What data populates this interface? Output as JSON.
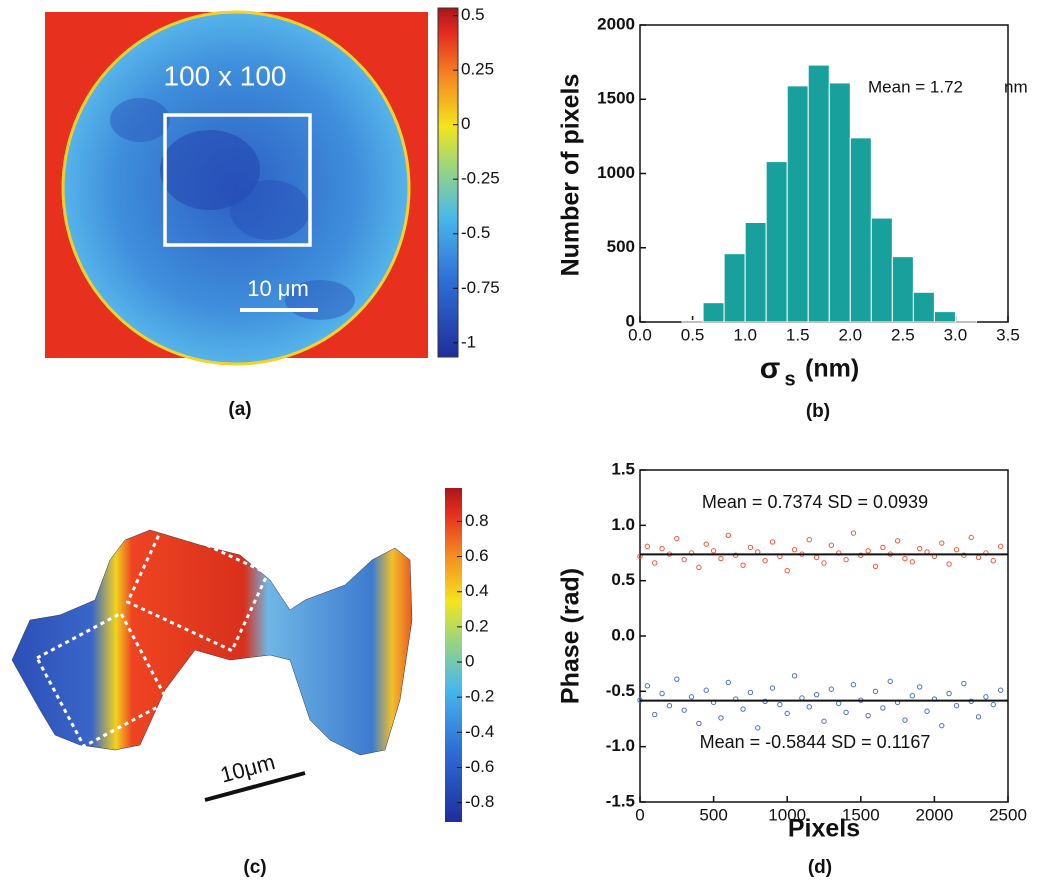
{
  "chart_data": [
    {
      "type": "heatmap",
      "label": "(a)",
      "annotations": [
        "100 x 100",
        "10 μm"
      ],
      "clim": [
        -1.065,
        0.535
      ],
      "cticks": [
        0.5,
        0.25,
        0,
        -0.25,
        -0.5,
        -0.75,
        -1
      ]
    },
    {
      "type": "histogram",
      "label": "(b)",
      "y_label": "Number of pixels",
      "x_label": {
        "symbol": "σ",
        "subscript": "s",
        "unit": "(nm)"
      },
      "annotation": "Mean = 1.72",
      "annotation_unit": "nm",
      "bins": [
        0.4,
        0.6,
        0.8,
        1.0,
        1.2,
        1.4,
        1.6,
        1.8,
        2.0,
        2.2,
        2.4,
        2.6,
        2.8,
        3.0,
        3.2
      ],
      "values": [
        10,
        130,
        460,
        670,
        1080,
        1590,
        1730,
        1610,
        1240,
        700,
        440,
        200,
        70,
        10
      ],
      "color": "#17a09c",
      "xlim": [
        0,
        3.5
      ],
      "xticks": [
        {
          "value": 0,
          "label": "0.0"
        },
        0.5,
        {
          "value": 1,
          "label": "1.0"
        },
        1.5,
        {
          "value": 2,
          "label": "2.0"
        },
        2.5,
        {
          "value": 3,
          "label": "3.0"
        },
        3.5
      ],
      "ylim": [
        0,
        2000
      ],
      "yticks": [
        0,
        500,
        1000,
        1500,
        2000
      ]
    },
    {
      "type": "surface",
      "label": "(c)",
      "annotations": [
        "10μm"
      ],
      "clim": [
        -0.91,
        0.99
      ],
      "cticks": [
        0.8,
        0.6,
        0.4,
        0.2,
        0,
        -0.2,
        -0.4,
        -0.6,
        -0.8
      ]
    },
    {
      "type": "scatter",
      "label": "(d)",
      "x_label": "Pixels",
      "y_label": "Phase (rad)",
      "x": [
        0,
        50,
        100,
        150,
        200,
        250,
        300,
        350,
        400,
        450,
        500,
        550,
        600,
        650,
        700,
        750,
        800,
        850,
        900,
        950,
        1000,
        1050,
        1100,
        1150,
        1200,
        1250,
        1300,
        1350,
        1400,
        1450,
        1500,
        1550,
        1600,
        1650,
        1700,
        1750,
        1800,
        1850,
        1900,
        1950,
        2000,
        2050,
        2100,
        2150,
        2200,
        2250,
        2300,
        2350,
        2400,
        2450
      ],
      "series": [
        {
          "color": "#f05a3c",
          "mean": 0.7374,
          "annotation": "Mean = 0.7374  SD = 0.0939",
          "values": [
            0.72,
            0.81,
            0.66,
            0.79,
            0.74,
            0.88,
            0.69,
            0.75,
            0.62,
            0.83,
            0.77,
            0.7,
            0.91,
            0.73,
            0.64,
            0.8,
            0.76,
            0.68,
            0.85,
            0.72,
            0.59,
            0.78,
            0.74,
            0.87,
            0.71,
            0.66,
            0.82,
            0.75,
            0.69,
            0.93,
            0.73,
            0.77,
            0.63,
            0.8,
            0.74,
            0.86,
            0.7,
            0.67,
            0.79,
            0.76,
            0.72,
            0.84,
            0.65,
            0.78,
            0.73,
            0.89,
            0.71,
            0.75,
            0.68,
            0.81
          ]
        },
        {
          "color": "#4a6fd0",
          "mean": -0.5844,
          "annotation": "Mean = -0.5844  SD = 0.1167",
          "values": [
            -0.58,
            -0.45,
            -0.71,
            -0.52,
            -0.63,
            -0.39,
            -0.67,
            -0.55,
            -0.79,
            -0.49,
            -0.6,
            -0.74,
            -0.42,
            -0.57,
            -0.66,
            -0.51,
            -0.83,
            -0.59,
            -0.47,
            -0.62,
            -0.7,
            -0.36,
            -0.56,
            -0.64,
            -0.53,
            -0.77,
            -0.48,
            -0.61,
            -0.69,
            -0.44,
            -0.58,
            -0.72,
            -0.5,
            -0.65,
            -0.41,
            -0.6,
            -0.76,
            -0.54,
            -0.46,
            -0.68,
            -0.57,
            -0.81,
            -0.52,
            -0.63,
            -0.43,
            -0.59,
            -0.73,
            -0.55,
            -0.62,
            -0.49
          ]
        }
      ],
      "xlim": [
        0,
        2500
      ],
      "xticks": [
        0,
        500,
        1000,
        1500,
        2000,
        2500
      ],
      "ylim": [
        -1.5,
        1.5
      ],
      "yticks": [
        -1.5,
        {
          "value": -1,
          "label": "-1.0"
        },
        -0.5,
        {
          "value": 0,
          "label": "0.0"
        },
        0.5,
        {
          "value": 1,
          "label": "1.0"
        },
        1.5
      ]
    }
  ]
}
